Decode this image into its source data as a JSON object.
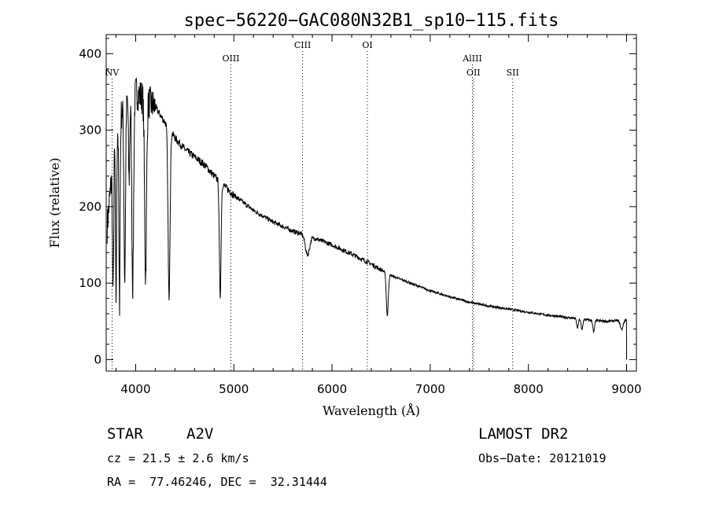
{
  "chart_data": {
    "type": "line",
    "title": "spec−56220−GAC080N32B1_sp10−115.fits",
    "xlabel": "Wavelength (Å)",
    "ylabel": "Flux (relative)",
    "xlim": [
      3700,
      9100
    ],
    "ylim": [
      -15,
      425
    ],
    "x_ticks": [
      4000,
      5000,
      6000,
      7000,
      8000,
      9000
    ],
    "y_ticks": [
      0,
      100,
      200,
      300,
      400
    ],
    "continuum": {
      "x": [
        3700,
        3800,
        3900,
        4000,
        4100,
        4200,
        4300,
        4400,
        4500,
        4600,
        4700,
        4800,
        5000,
        5200,
        5400,
        5600,
        5800,
        6000,
        6200,
        6400,
        6600,
        6800,
        7000,
        7200,
        7400,
        7600,
        7800,
        8000,
        8200,
        8400,
        8600,
        8800,
        9000
      ],
      "y": [
        160,
        300,
        340,
        350,
        340,
        330,
        310,
        290,
        275,
        265,
        255,
        240,
        215,
        195,
        180,
        168,
        160,
        150,
        138,
        125,
        110,
        100,
        90,
        82,
        75,
        70,
        66,
        62,
        58,
        55,
        52,
        50,
        52
      ]
    },
    "absorption_features": [
      {
        "x": 3770,
        "depth": 180,
        "width": 8
      },
      {
        "x": 3800,
        "depth": 220,
        "width": 8
      },
      {
        "x": 3835,
        "depth": 240,
        "width": 9
      },
      {
        "x": 3889,
        "depth": 230,
        "width": 11
      },
      {
        "x": 3933,
        "depth": 110,
        "width": 9
      },
      {
        "x": 3970,
        "depth": 250,
        "width": 13
      },
      {
        "x": 4101,
        "depth": 230,
        "width": 14
      },
      {
        "x": 4340,
        "depth": 220,
        "width": 14
      },
      {
        "x": 4861,
        "depth": 150,
        "width": 12
      },
      {
        "x": 5750,
        "depth": 25,
        "width": 30
      },
      {
        "x": 6563,
        "depth": 55,
        "width": 14
      },
      {
        "x": 8500,
        "depth": 12,
        "width": 12
      },
      {
        "x": 8545,
        "depth": 14,
        "width": 12
      },
      {
        "x": 8665,
        "depth": 16,
        "width": 12
      },
      {
        "x": 8950,
        "depth": 12,
        "width": 20
      }
    ],
    "spectral_lines": [
      {
        "label": "NV",
        "x": 3760,
        "label_row": 3
      },
      {
        "label": "OIII",
        "x": 4970,
        "label_row": 2
      },
      {
        "label": "CIII",
        "x": 5700,
        "label_row": 1
      },
      {
        "label": "OI",
        "x": 6360,
        "label_row": 1
      },
      {
        "label": "AlIII",
        "x": 7430,
        "label_row": 2
      },
      {
        "label": "OII",
        "x": 7440,
        "label_row": 3
      },
      {
        "label": "SII",
        "x": 7840,
        "label_row": 3
      }
    ]
  },
  "info": {
    "object_class": "STAR",
    "subclass": "A2V",
    "survey": "LAMOST DR2",
    "cz": "cz = 21.5 ± 2.6 km/s",
    "obs_date": "Obs−Date: 20121019",
    "coords": "RA =  77.46246, DEC =  32.31444"
  }
}
